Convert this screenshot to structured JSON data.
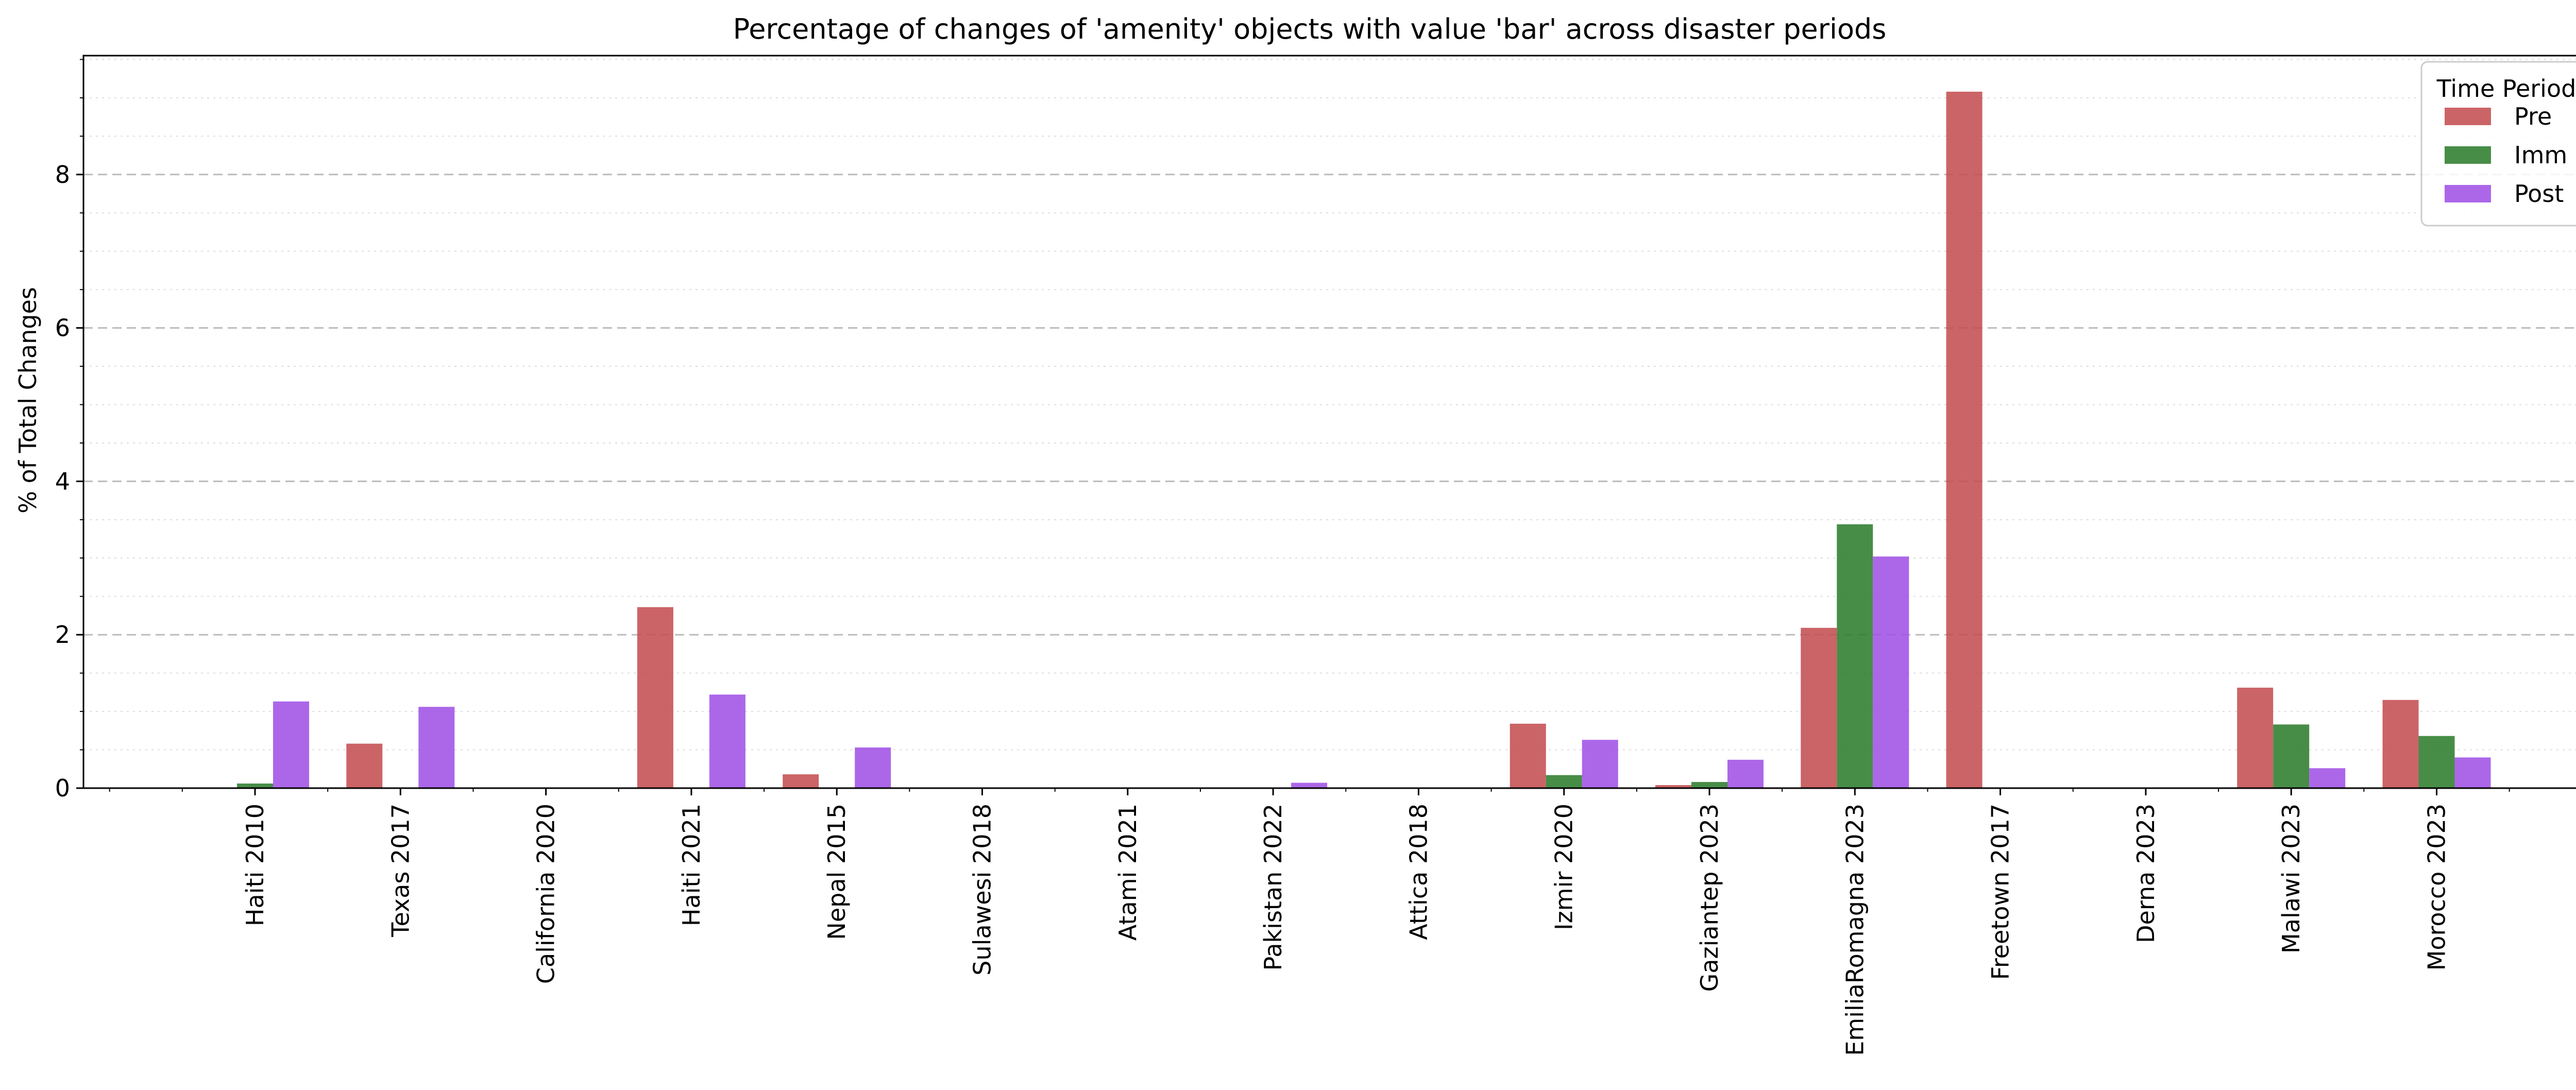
{
  "chart_data": {
    "type": "bar",
    "title": "Percentage of changes of 'amenity' objects with value 'bar' across disaster periods",
    "xlabel": "",
    "ylabel": "% of Total Changes",
    "ylim": [
      0,
      9.55
    ],
    "yticks": [
      0,
      2,
      4,
      6,
      8
    ],
    "grid": "horizontal dashed (major), dotted (minor)",
    "legend_title": "Time Period",
    "legend_position": "top-right",
    "categories": [
      "Haiti 2010",
      "Texas 2017",
      "California 2020",
      "Haiti 2021",
      "Nepal 2015",
      "Sulawesi 2018",
      "Atami 2021",
      "Pakistan 2022",
      "Attica 2018",
      "Izmir 2020",
      "Gaziantep 2023",
      "EmiliaRomagna 2023",
      "Freetown 2017",
      "Derna 2023",
      "Malawi 2023",
      "Morocco 2023"
    ],
    "series": [
      {
        "name": "Pre",
        "color": "#c44e52",
        "values": [
          0,
          0.58,
          0,
          2.36,
          0.18,
          0,
          0,
          0,
          0,
          0.84,
          0.04,
          2.09,
          9.08,
          0,
          1.31,
          1.15
        ]
      },
      {
        "name": "Imm",
        "color": "#2e7d2e",
        "values": [
          0.06,
          0,
          0,
          0,
          0,
          0,
          0,
          0,
          0,
          0.17,
          0.08,
          3.44,
          0,
          0,
          0.83,
          0.68
        ]
      },
      {
        "name": "Post",
        "color": "#a052e6",
        "values": [
          1.13,
          1.06,
          0,
          1.22,
          0.53,
          0,
          0,
          0.07,
          0,
          0.63,
          0.37,
          3.02,
          0,
          0,
          0.26,
          0.4
        ]
      }
    ]
  }
}
